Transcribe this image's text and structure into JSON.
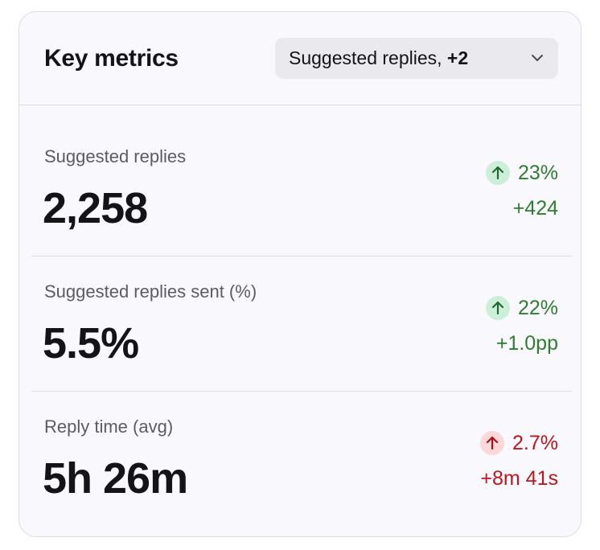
{
  "card": {
    "title": "Key metrics",
    "selector": {
      "label": "Suggested replies,",
      "extra": "+2",
      "icon": "chevron-down-icon"
    }
  },
  "metrics": [
    {
      "label": "Suggested replies",
      "value": "2,258",
      "change_pct": "23%",
      "change_abs": "+424",
      "trend": "up",
      "sentiment": "positive",
      "icon": "arrow-up-icon"
    },
    {
      "label": "Suggested replies sent (%)",
      "value": "5.5%",
      "change_pct": "22%",
      "change_abs": "+1.0pp",
      "trend": "up",
      "sentiment": "positive",
      "icon": "arrow-up-icon"
    },
    {
      "label": "Reply time (avg)",
      "value": "5h 26m",
      "change_pct": "2.7%",
      "change_abs": "+8m 41s",
      "trend": "up",
      "sentiment": "negative",
      "icon": "arrow-up-icon"
    }
  ],
  "colors": {
    "positive": "#2e7d32",
    "positive_badge": "#cdeed8",
    "negative": "#c0151d",
    "negative_badge": "#fbd9d9"
  }
}
